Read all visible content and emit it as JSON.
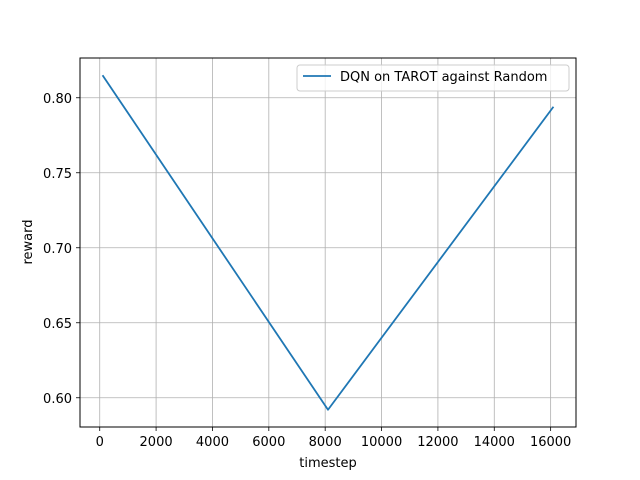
{
  "chart_data": {
    "type": "line",
    "title": "",
    "xlabel": "timestep",
    "ylabel": "reward",
    "xlim": [
      -700,
      16900
    ],
    "ylim": [
      0.5805,
      0.8265
    ],
    "xticks": [
      0,
      2000,
      4000,
      6000,
      8000,
      10000,
      12000,
      14000,
      16000
    ],
    "xtick_labels": [
      "0",
      "2000",
      "4000",
      "6000",
      "8000",
      "10000",
      "12000",
      "14000",
      "16000"
    ],
    "yticks": [
      0.6,
      0.65,
      0.7,
      0.75,
      0.8
    ],
    "ytick_labels": [
      "0.60",
      "0.65",
      "0.70",
      "0.75",
      "0.80"
    ],
    "grid": true,
    "legend_position": "top-right",
    "series": [
      {
        "name": "DQN on TAROT against Random",
        "color": "#1f77b4",
        "x": [
          100,
          8100,
          16100
        ],
        "y": [
          0.815,
          0.592,
          0.794
        ]
      }
    ]
  }
}
